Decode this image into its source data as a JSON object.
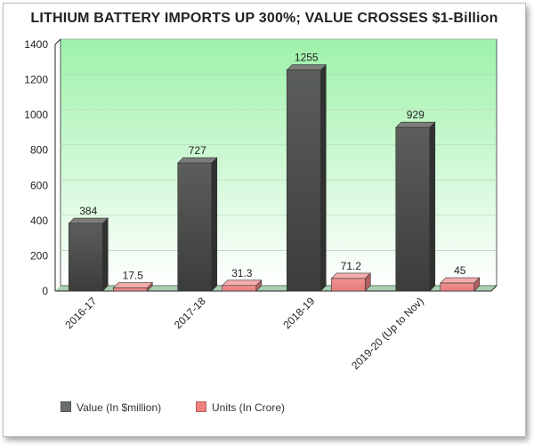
{
  "chart_data": {
    "type": "bar",
    "title": "LITHIUM BATTERY IMPORTS UP 300%; VALUE CROSSES $1-Billion",
    "categories": [
      "2016-17",
      "2017-18",
      "2018-19",
      "2019-20 (Up to Nov)"
    ],
    "series": [
      {
        "name": "Value (In $million)",
        "values": [
          384,
          727,
          1255,
          929
        ],
        "color": "#6b6f6b"
      },
      {
        "name": "Units (In Crore)",
        "values": [
          17.5,
          31.3,
          71.2,
          45
        ],
        "color": "#f08080"
      }
    ],
    "value_labels": [
      [
        "384",
        "727",
        "1255",
        "929"
      ],
      [
        "17.5",
        "31.3",
        "71.2",
        "45"
      ]
    ],
    "ylim": [
      0,
      1400
    ],
    "yticks": [
      "0",
      "200",
      "400",
      "600",
      "800",
      "1000",
      "1200",
      "1400"
    ],
    "grid": true,
    "legend_position": "bottom",
    "style": "3d-columns",
    "plot_background": "#9ef2aa"
  }
}
